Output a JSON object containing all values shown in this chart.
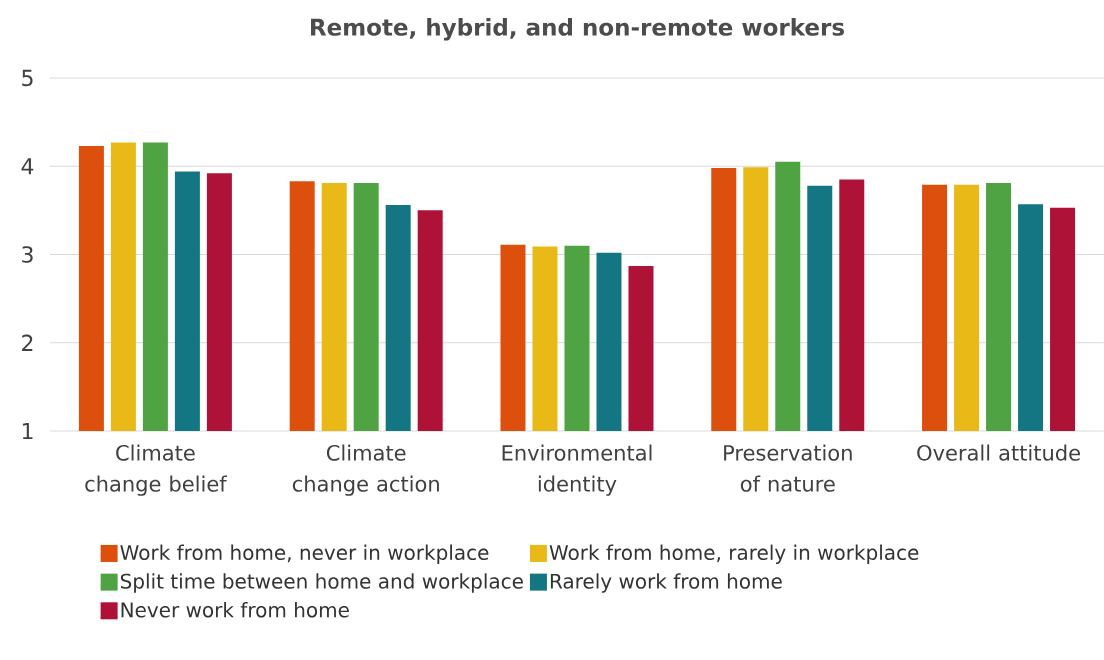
{
  "chart_data": {
    "type": "bar",
    "title": "Remote, hybrid, and non-remote workers",
    "categories": [
      "Climate change belief",
      "Climate change action",
      "Environmental identity",
      "Preservation of nature",
      "Overall attitude"
    ],
    "series": [
      {
        "name": "Work from home, never in workplace",
        "color": "#dd4f0d",
        "values": [
          4.23,
          3.83,
          3.11,
          3.98,
          3.79
        ]
      },
      {
        "name": "Work from home, rarely in workplace",
        "color": "#e9b918",
        "values": [
          4.27,
          3.81,
          3.09,
          3.99,
          3.79
        ]
      },
      {
        "name": "Split time between home and workplace",
        "color": "#4fa343",
        "values": [
          4.27,
          3.81,
          3.1,
          4.05,
          3.81
        ]
      },
      {
        "name": "Rarely work from home",
        "color": "#137682",
        "values": [
          3.94,
          3.56,
          3.02,
          3.78,
          3.57
        ]
      },
      {
        "name": "Never work from home",
        "color": "#ae1237",
        "values": [
          3.92,
          3.5,
          2.87,
          3.85,
          3.53
        ]
      }
    ],
    "ylim": [
      1,
      5
    ],
    "yticks": [
      1,
      2,
      3,
      4,
      5
    ],
    "grid": "y",
    "legend": "bottom"
  }
}
